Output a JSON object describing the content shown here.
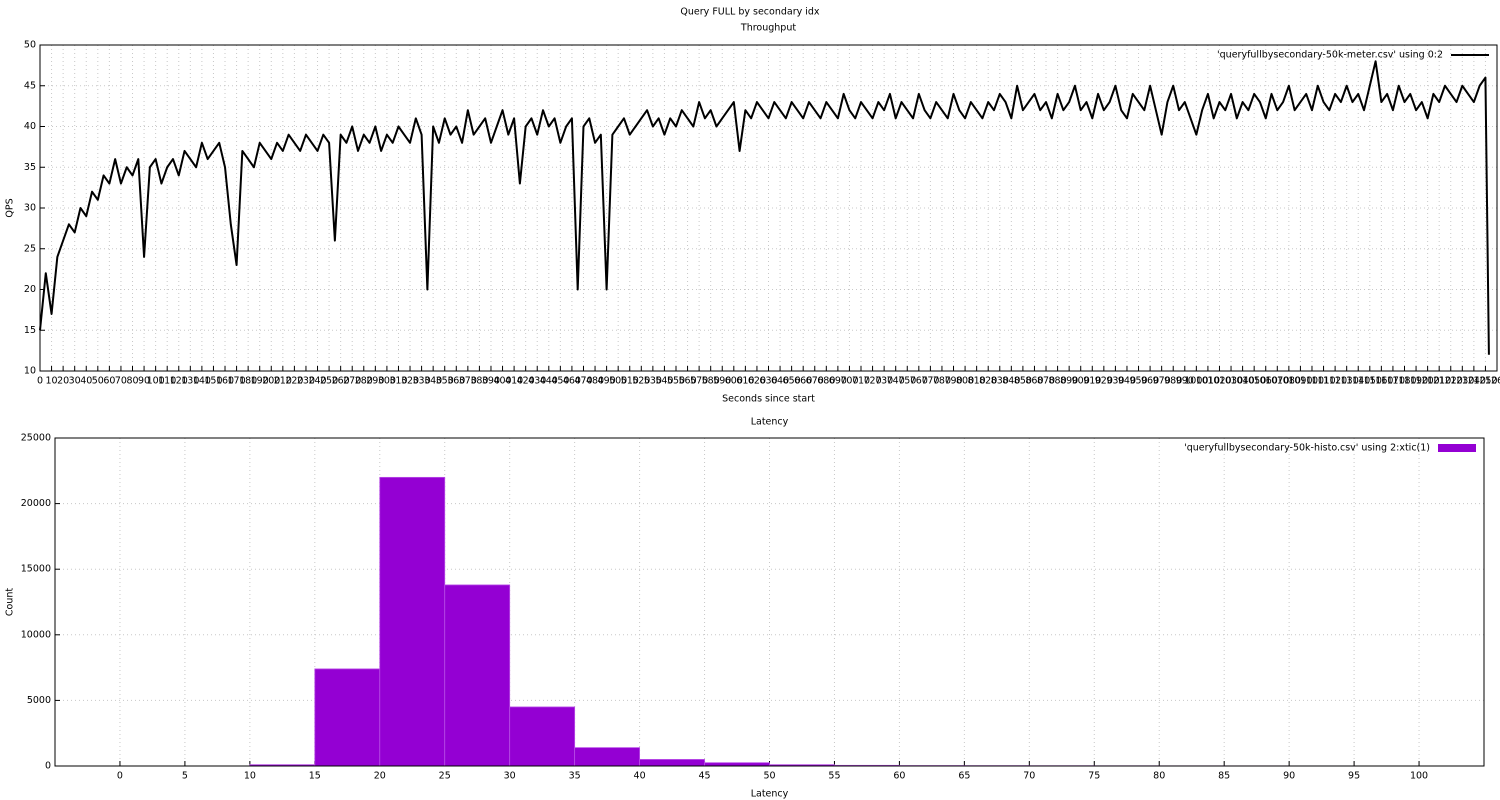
{
  "title": "Query FULL by secondary idx",
  "chart_data": [
    {
      "type": "line",
      "title": "Throughput",
      "xlabel": "Seconds since start",
      "ylabel": "QPS",
      "legend": "top right",
      "grid": true,
      "xlim": [
        0,
        1260
      ],
      "ylim": [
        10,
        50
      ],
      "xticks": [
        0,
        10,
        20,
        30,
        40,
        50,
        60,
        70,
        80,
        90,
        100,
        110,
        120,
        130,
        140,
        150,
        160,
        170,
        180,
        190,
        200,
        210,
        220,
        230,
        240,
        250,
        260,
        270,
        280,
        290,
        300,
        310,
        320,
        330,
        340,
        350,
        360,
        370,
        380,
        390,
        400,
        410,
        420,
        430,
        440,
        450,
        460,
        470,
        480,
        490,
        500,
        510,
        520,
        530,
        540,
        550,
        560,
        570,
        580,
        590,
        600,
        610,
        620,
        630,
        640,
        650,
        660,
        670,
        680,
        690,
        700,
        710,
        720,
        730,
        740,
        750,
        760,
        770,
        780,
        790,
        800,
        810,
        820,
        830,
        840,
        850,
        860,
        870,
        880,
        890,
        900,
        910,
        920,
        930,
        940,
        950,
        960,
        970,
        980,
        990,
        1000,
        1010,
        1020,
        1030,
        1040,
        1050,
        1060,
        1070,
        1080,
        1090,
        1100,
        1110,
        1120,
        1130,
        1140,
        1150,
        1160,
        1170,
        1180,
        1190,
        1200,
        1210,
        1220,
        1230,
        1240,
        1250,
        1260
      ],
      "yticks": [
        10,
        15,
        20,
        25,
        30,
        35,
        40,
        45,
        50
      ],
      "x": [
        0,
        5,
        10,
        15,
        20,
        25,
        30,
        35,
        40,
        45,
        50,
        55,
        60,
        65,
        70,
        75,
        80,
        85,
        90,
        95,
        100,
        105,
        110,
        115,
        120,
        125,
        130,
        135,
        140,
        145,
        150,
        155,
        160,
        165,
        170,
        175,
        180,
        185,
        190,
        195,
        200,
        205,
        210,
        215,
        220,
        225,
        230,
        235,
        240,
        245,
        250,
        255,
        260,
        265,
        270,
        275,
        280,
        285,
        290,
        295,
        300,
        305,
        310,
        315,
        320,
        325,
        330,
        335,
        340,
        345,
        350,
        355,
        360,
        365,
        370,
        375,
        380,
        385,
        390,
        395,
        400,
        405,
        410,
        415,
        420,
        425,
        430,
        435,
        440,
        445,
        450,
        455,
        460,
        465,
        470,
        475,
        480,
        485,
        490,
        495,
        500,
        505,
        510,
        515,
        520,
        525,
        530,
        535,
        540,
        545,
        550,
        555,
        560,
        565,
        570,
        575,
        580,
        585,
        590,
        595,
        600,
        605,
        610,
        615,
        620,
        625,
        630,
        635,
        640,
        645,
        650,
        655,
        660,
        665,
        670,
        675,
        680,
        685,
        690,
        695,
        700,
        705,
        710,
        715,
        720,
        725,
        730,
        735,
        740,
        745,
        750,
        755,
        760,
        765,
        770,
        775,
        780,
        785,
        790,
        795,
        800,
        805,
        810,
        815,
        820,
        825,
        830,
        835,
        840,
        845,
        850,
        855,
        860,
        865,
        870,
        875,
        880,
        885,
        890,
        895,
        900,
        905,
        910,
        915,
        920,
        925,
        930,
        935,
        940,
        945,
        950,
        955,
        960,
        965,
        970,
        975,
        980,
        985,
        990,
        995,
        1000,
        1005,
        1010,
        1015,
        1020,
        1025,
        1030,
        1035,
        1040,
        1045,
        1050,
        1055,
        1060,
        1065,
        1070,
        1075,
        1080,
        1085,
        1090,
        1095,
        1100,
        1105,
        1110,
        1115,
        1120,
        1125,
        1130,
        1135,
        1140,
        1145,
        1150,
        1155,
        1160,
        1165,
        1170,
        1175,
        1180,
        1185,
        1190,
        1195,
        1200,
        1205,
        1210,
        1215,
        1220,
        1225,
        1230,
        1235,
        1240,
        1245,
        1250,
        1253
      ],
      "series": [
        {
          "name": "'queryfullbysecondary-50k-meter.csv' using 0:2",
          "color": "#000000",
          "values": [
            15,
            22,
            17,
            24,
            26,
            28,
            27,
            30,
            29,
            32,
            31,
            34,
            33,
            36,
            33,
            35,
            34,
            36,
            24,
            35,
            36,
            33,
            35,
            36,
            34,
            37,
            36,
            35,
            38,
            36,
            37,
            38,
            35,
            28,
            23,
            37,
            36,
            35,
            38,
            37,
            36,
            38,
            37,
            39,
            38,
            37,
            39,
            38,
            37,
            39,
            38,
            26,
            39,
            38,
            40,
            37,
            39,
            38,
            40,
            37,
            39,
            38,
            40,
            39,
            38,
            41,
            39,
            20,
            40,
            38,
            41,
            39,
            40,
            38,
            42,
            39,
            40,
            41,
            38,
            40,
            42,
            39,
            41,
            33,
            40,
            41,
            39,
            42,
            40,
            41,
            38,
            40,
            41,
            20,
            40,
            41,
            38,
            39,
            20,
            39,
            40,
            41,
            39,
            40,
            41,
            42,
            40,
            41,
            39,
            41,
            40,
            42,
            41,
            40,
            43,
            41,
            42,
            40,
            41,
            42,
            43,
            37,
            42,
            41,
            43,
            42,
            41,
            43,
            42,
            41,
            43,
            42,
            41,
            43,
            42,
            41,
            43,
            42,
            41,
            44,
            42,
            41,
            43,
            42,
            41,
            43,
            42,
            44,
            41,
            43,
            42,
            41,
            44,
            42,
            41,
            43,
            42,
            41,
            44,
            42,
            41,
            43,
            42,
            41,
            43,
            42,
            44,
            43,
            41,
            45,
            42,
            43,
            44,
            42,
            43,
            41,
            44,
            42,
            43,
            45,
            42,
            43,
            41,
            44,
            42,
            43,
            45,
            42,
            41,
            44,
            43,
            42,
            45,
            42,
            39,
            43,
            45,
            42,
            43,
            41,
            39,
            42,
            44,
            41,
            43,
            42,
            44,
            41,
            43,
            42,
            44,
            43,
            41,
            44,
            42,
            43,
            45,
            42,
            43,
            44,
            42,
            45,
            43,
            42,
            44,
            43,
            45,
            43,
            44,
            42,
            45,
            48,
            43,
            44,
            42,
            45,
            43,
            44,
            42,
            43,
            41,
            44,
            43,
            45,
            44,
            43,
            45,
            44,
            43,
            45,
            46,
            12
          ]
        }
      ]
    },
    {
      "type": "histogram",
      "title": "Latency",
      "xlabel": "Latency",
      "ylabel": "Count",
      "legend": "top right",
      "grid": true,
      "color": "#9400d3",
      "legend_label": "'queryfullbysecondary-50k-histo.csv' using 2:xtic(1)",
      "xlim": [
        -5,
        105
      ],
      "ylim": [
        0,
        25000
      ],
      "xticks": [
        0,
        5,
        10,
        15,
        20,
        25,
        30,
        35,
        40,
        45,
        50,
        55,
        60,
        65,
        70,
        75,
        80,
        85,
        90,
        95,
        100
      ],
      "yticks": [
        0,
        5000,
        10000,
        15000,
        20000,
        25000
      ],
      "bins": [
        0,
        5,
        10,
        15,
        20,
        25,
        30,
        35,
        40,
        45,
        50,
        55,
        60,
        65,
        70,
        75,
        80,
        85,
        90,
        95,
        100,
        105
      ],
      "counts": [
        0,
        0,
        100,
        7400,
        22000,
        13800,
        4500,
        1400,
        500,
        250,
        100,
        50,
        30,
        25,
        20,
        15,
        12,
        10,
        8,
        6,
        5
      ]
    }
  ]
}
